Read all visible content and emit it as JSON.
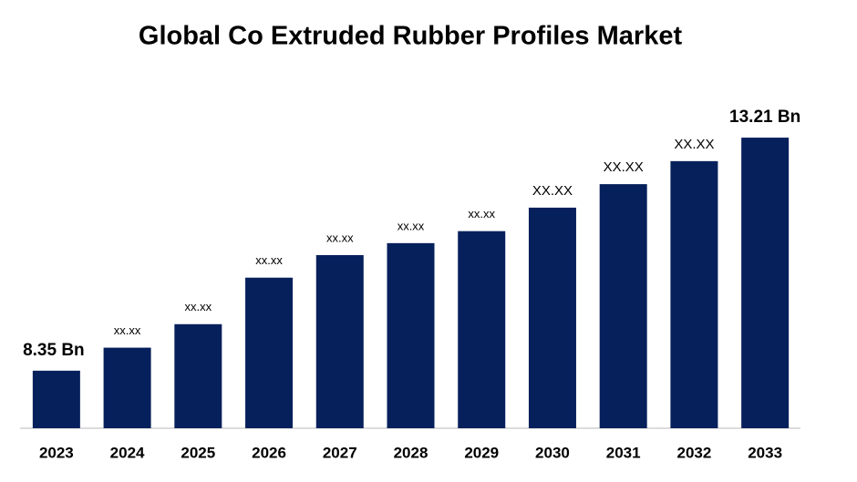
{
  "chart_data": {
    "type": "bar",
    "title": "Global Co Extruded Rubber Profiles Market",
    "categories": [
      "2023",
      "2024",
      "2025",
      "2026",
      "2027",
      "2028",
      "2029",
      "2030",
      "2031",
      "2032",
      "2033"
    ],
    "values": [
      8.35,
      8.83,
      9.32,
      10.29,
      10.76,
      11.01,
      11.26,
      11.75,
      12.24,
      12.72,
      13.21
    ],
    "value_labels": [
      "8.35 Bn",
      "xx.xx",
      "xx.xx",
      "xx.xx",
      "xx.xx",
      "xx.xx",
      "xx.xx",
      "XX.XX",
      "XX.XX",
      "XX.XX",
      "13.21 Bn"
    ],
    "color": "#06205c",
    "ylim": [
      7.15,
      13.61
    ]
  }
}
